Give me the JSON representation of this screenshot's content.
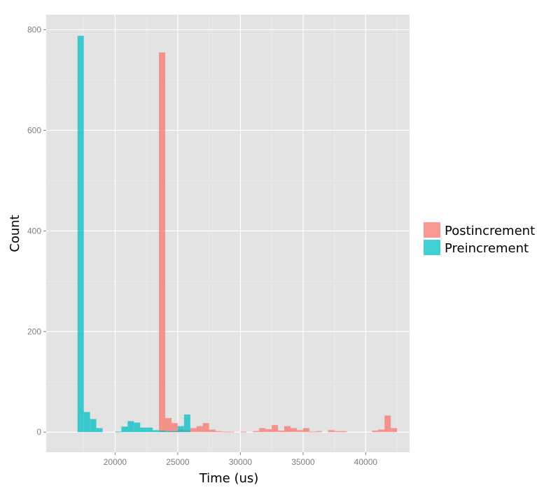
{
  "chart_data": {
    "type": "histogram",
    "xlabel": "Time (us)",
    "ylabel": "Count",
    "xlim": [
      14500,
      43500
    ],
    "ylim": [
      -40,
      830
    ],
    "bin_width": 500,
    "x_ticks": [
      20000,
      25000,
      30000,
      35000,
      40000
    ],
    "y_ticks": [
      0,
      200,
      400,
      600,
      800
    ],
    "x_tick_labels": [
      "20000",
      "25000",
      "30000",
      "35000",
      "40000"
    ],
    "y_tick_labels": [
      "0",
      "200",
      "400",
      "600",
      "800"
    ],
    "grid": true,
    "legend_position": "right",
    "legend_entries": [
      "Postincrement",
      "Preincrement"
    ],
    "colors": {
      "panel_background": "#E3E3E3",
      "grid_major": "#FFFFFF",
      "grid_minor": "#EDEDED",
      "Postincrement": "#F8766D",
      "Preincrement": "#00BFC4"
    },
    "bar_opacity": 0.75,
    "series": [
      {
        "name": "Postincrement",
        "bins": [
          {
            "x": 23750,
            "count": 755
          },
          {
            "x": 24250,
            "count": 28
          },
          {
            "x": 24750,
            "count": 18
          },
          {
            "x": 25250,
            "count": 5
          },
          {
            "x": 25750,
            "count": 4
          },
          {
            "x": 26250,
            "count": 8
          },
          {
            "x": 26750,
            "count": 12
          },
          {
            "x": 27250,
            "count": 18
          },
          {
            "x": 27750,
            "count": 5
          },
          {
            "x": 28250,
            "count": 2
          },
          {
            "x": 28750,
            "count": 1
          },
          {
            "x": 29250,
            "count": 1
          },
          {
            "x": 30250,
            "count": 1
          },
          {
            "x": 31250,
            "count": 2
          },
          {
            "x": 31750,
            "count": 8
          },
          {
            "x": 32250,
            "count": 6
          },
          {
            "x": 32750,
            "count": 14
          },
          {
            "x": 33250,
            "count": 3
          },
          {
            "x": 33750,
            "count": 12
          },
          {
            "x": 34250,
            "count": 8
          },
          {
            "x": 34750,
            "count": 4
          },
          {
            "x": 35250,
            "count": 8
          },
          {
            "x": 35750,
            "count": 1
          },
          {
            "x": 36250,
            "count": 2
          },
          {
            "x": 37250,
            "count": 4
          },
          {
            "x": 37750,
            "count": 2
          },
          {
            "x": 38250,
            "count": 2
          },
          {
            "x": 40750,
            "count": 3
          },
          {
            "x": 41250,
            "count": 5
          },
          {
            "x": 41750,
            "count": 33
          },
          {
            "x": 42250,
            "count": 8
          }
        ]
      },
      {
        "name": "Preincrement",
        "bins": [
          {
            "x": 17250,
            "count": 788
          },
          {
            "x": 17750,
            "count": 40
          },
          {
            "x": 18250,
            "count": 26
          },
          {
            "x": 18750,
            "count": 8
          },
          {
            "x": 20250,
            "count": 1
          },
          {
            "x": 20750,
            "count": 11
          },
          {
            "x": 21250,
            "count": 22
          },
          {
            "x": 21750,
            "count": 19
          },
          {
            "x": 22250,
            "count": 9
          },
          {
            "x": 22750,
            "count": 9
          },
          {
            "x": 23250,
            "count": 4
          },
          {
            "x": 23750,
            "count": 3
          },
          {
            "x": 24250,
            "count": 2
          },
          {
            "x": 24750,
            "count": 2
          },
          {
            "x": 25250,
            "count": 12
          },
          {
            "x": 25750,
            "count": 35
          }
        ]
      }
    ]
  }
}
